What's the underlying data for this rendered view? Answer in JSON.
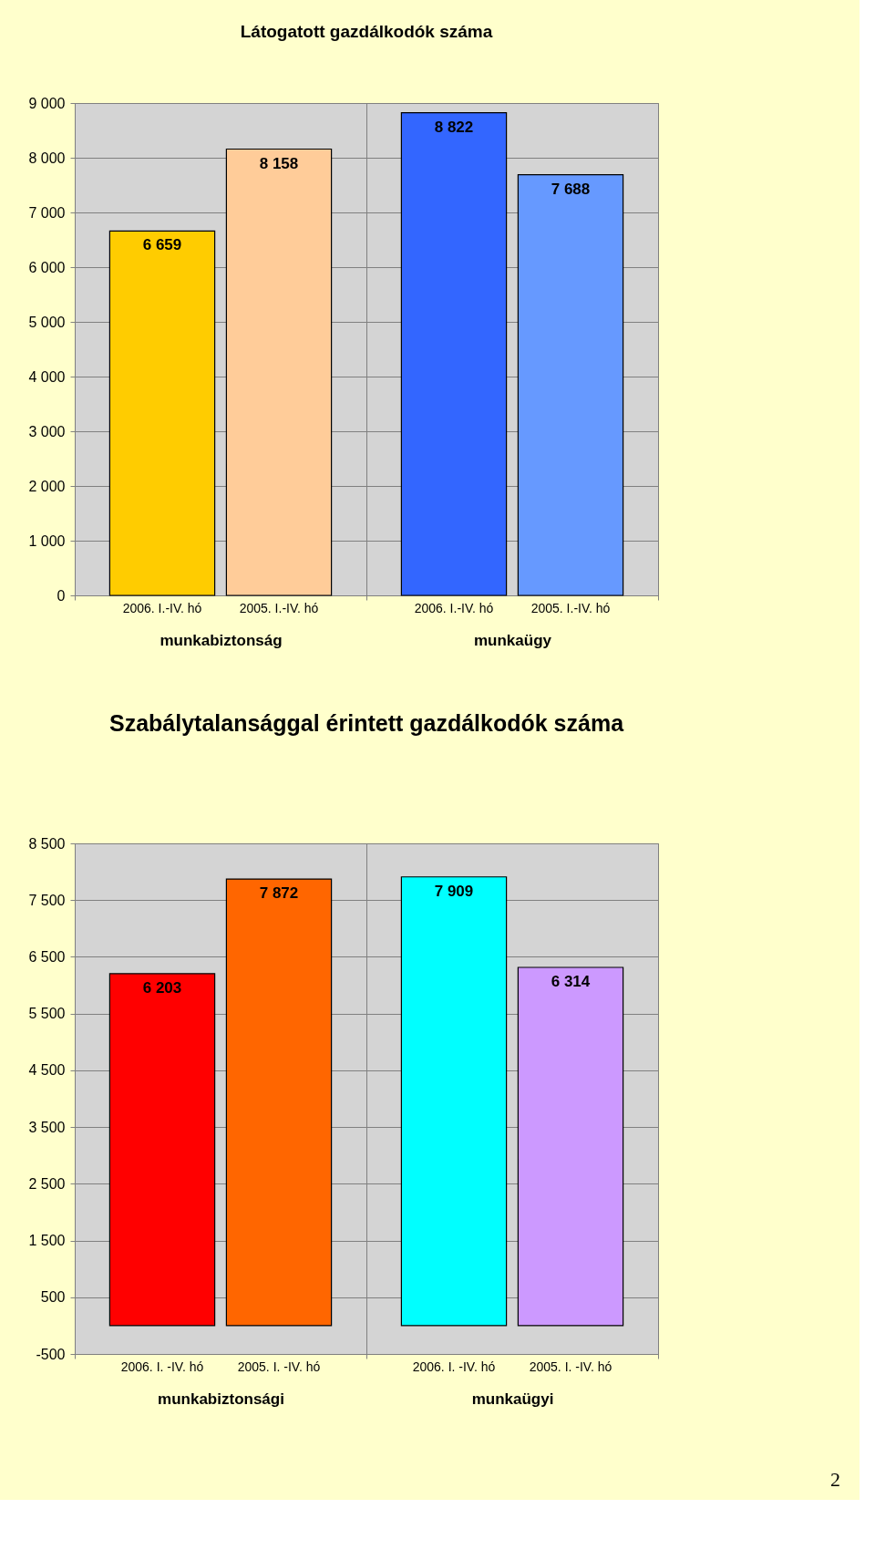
{
  "chart_data": [
    {
      "type": "bar",
      "title": "Látogatott gazdálkodók száma",
      "categories": [
        "munkabiztonság",
        "munkaügy"
      ],
      "series": [
        {
          "name": "2006. I.-IV. hó",
          "colors": [
            "#ffcc00",
            "#3366ff"
          ],
          "values": [
            6659,
            8822
          ],
          "value_labels": [
            "6 659",
            "8 822"
          ]
        },
        {
          "name": "2005. I.-IV. hó",
          "colors": [
            "#ffcc99",
            "#6699ff"
          ],
          "values": [
            8158,
            7688
          ],
          "value_labels": [
            "8 158",
            "7 688"
          ]
        }
      ],
      "ylim": [
        0,
        9000
      ],
      "yticks": [
        0,
        {
          "value": 1000,
          "label": "1 000"
        },
        {
          "value": 2000,
          "label": "2 000"
        },
        {
          "value": 3000,
          "label": "3 000"
        },
        {
          "value": 4000,
          "label": "4 000"
        },
        {
          "value": 5000,
          "label": "5 000"
        },
        {
          "value": 6000,
          "label": "6 000"
        },
        {
          "value": 7000,
          "label": "7 000"
        },
        {
          "value": 8000,
          "label": "8 000"
        },
        {
          "value": 9000,
          "label": "9 000"
        }
      ],
      "grid": true
    },
    {
      "type": "bar",
      "title": "Szabálytalansággal érintett gazdálkodók száma",
      "categories": [
        "munkabiztonsági",
        "munkaügyi"
      ],
      "series": [
        {
          "name": "2006. I. -IV. hó",
          "colors": [
            "#ff0000",
            "#00ffff"
          ],
          "values": [
            6203,
            7909
          ],
          "value_labels": [
            "6 203",
            "7 909"
          ]
        },
        {
          "name": "2005. I. -IV. hó",
          "colors": [
            "#ff6600",
            "#cc99ff"
          ],
          "values": [
            7872,
            6314
          ],
          "value_labels": [
            "7 872",
            "6 314"
          ]
        }
      ],
      "ylim": [
        -500,
        8500
      ],
      "yticks": [
        -500,
        500,
        {
          "value": 1500,
          "label": "1 500"
        },
        {
          "value": 2500,
          "label": "2 500"
        },
        {
          "value": 3500,
          "label": "3 500"
        },
        {
          "value": 4500,
          "label": "4 500"
        },
        {
          "value": 5500,
          "label": "5 500"
        },
        {
          "value": 6500,
          "label": "6 500"
        },
        {
          "value": 7500,
          "label": "7 500"
        },
        {
          "value": 8500,
          "label": "8 500"
        }
      ],
      "grid": true,
      "annotations": [
        "2"
      ]
    }
  ]
}
